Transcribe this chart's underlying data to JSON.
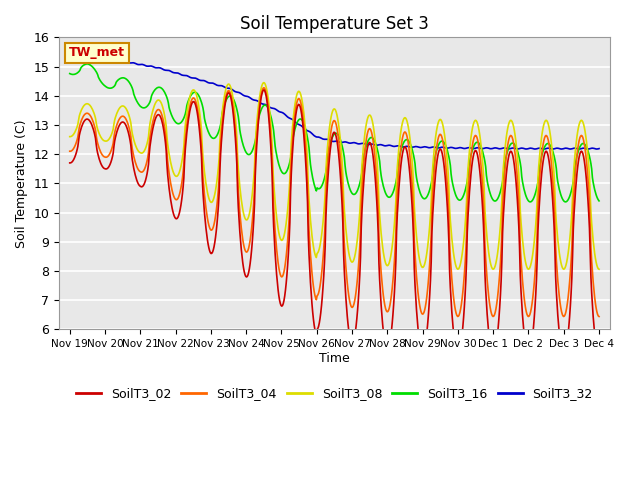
{
  "title": "Soil Temperature Set 3",
  "xlabel": "Time",
  "ylabel": "Soil Temperature (C)",
  "ylim": [
    6.0,
    16.0
  ],
  "yticks": [
    6.0,
    7.0,
    8.0,
    9.0,
    10.0,
    11.0,
    12.0,
    13.0,
    14.0,
    15.0,
    16.0
  ],
  "bg_color": "#e0e0e0",
  "plot_bg": "#e8e8e8",
  "colors": {
    "SoilT3_02": "#cc0000",
    "SoilT3_04": "#ff6600",
    "SoilT3_08": "#dddd00",
    "SoilT3_16": "#00dd00",
    "SoilT3_32": "#0000cc"
  },
  "annotation": "TW_met",
  "annotation_color": "#cc0000",
  "annotation_bg": "#ffffcc",
  "annotation_border": "#cc8800",
  "xtick_labels": [
    "Nov 19",
    "Nov 20",
    "Nov 21",
    "Nov 22",
    "Nov 23",
    "Nov 24",
    "Nov 25",
    "Nov 26",
    "Nov 27",
    "Nov 28",
    "Nov 29",
    "Nov 30",
    "Dec 1",
    "Dec 2",
    "Dec 3",
    "Dec 4"
  ],
  "n_days": 15.0
}
